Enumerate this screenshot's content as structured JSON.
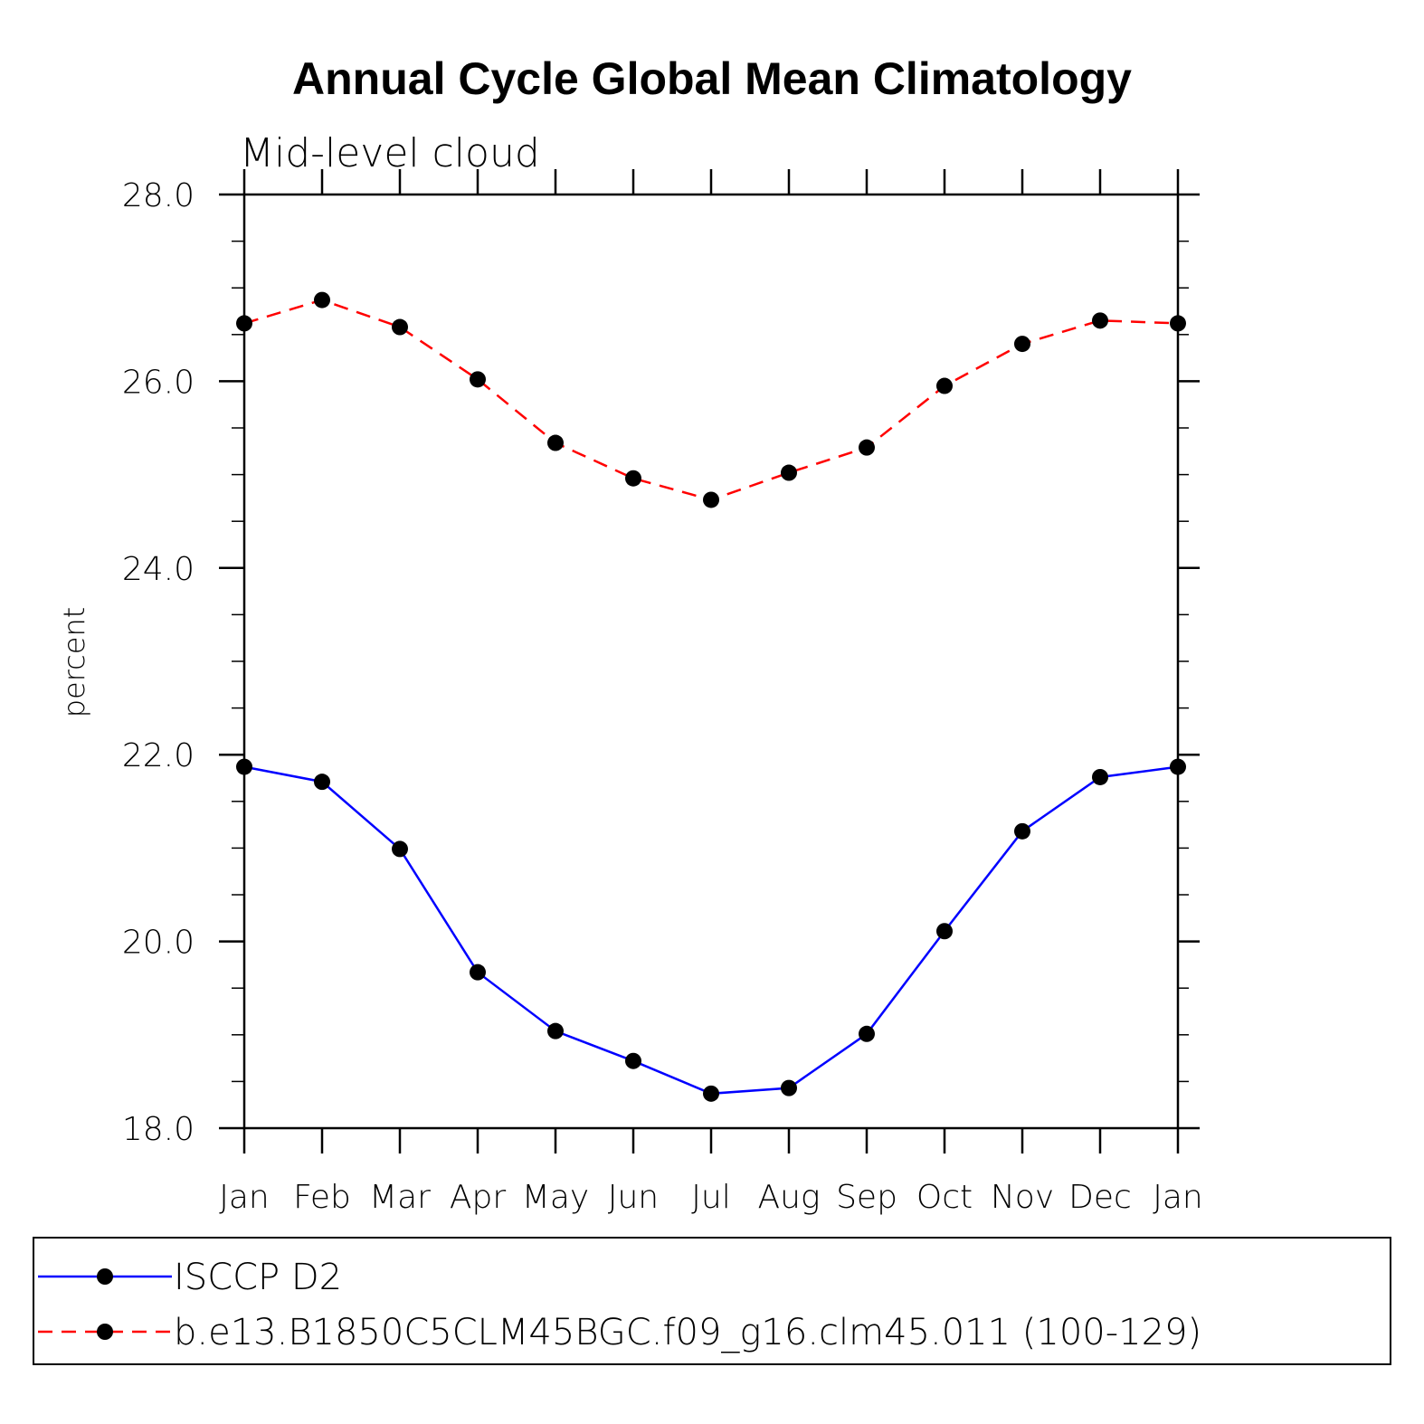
{
  "chart_data": {
    "type": "line",
    "title": "Annual Cycle Global Mean Climatology",
    "subtitle": "Mid-level cloud",
    "xlabel": "",
    "ylabel": "percent",
    "categories": [
      "Jan",
      "Feb",
      "Mar",
      "Apr",
      "May",
      "Jun",
      "Jul",
      "Aug",
      "Sep",
      "Oct",
      "Nov",
      "Dec",
      "Jan"
    ],
    "ylim": [
      18.0,
      28.0
    ],
    "yticks": [
      "18.0",
      "20.0",
      "22.0",
      "24.0",
      "26.0",
      "28.0"
    ],
    "series": [
      {
        "name": "ISCCP D2",
        "color": "#0000ff",
        "dash": "solid",
        "marker_color": "#000000",
        "values": [
          21.87,
          21.71,
          20.99,
          19.67,
          19.04,
          18.72,
          18.37,
          18.43,
          19.01,
          20.11,
          21.18,
          21.76,
          21.87
        ]
      },
      {
        "name": "b.e13.B1850C5CLM45BGC.f09_g16.clm45.011 (100-129)",
        "color": "#ff0000",
        "dash": "dashed",
        "marker_color": "#000000",
        "values": [
          26.62,
          26.87,
          26.58,
          26.02,
          25.34,
          24.96,
          24.73,
          25.02,
          25.29,
          25.95,
          26.4,
          26.65,
          26.62
        ]
      }
    ],
    "legend": "bottom"
  }
}
